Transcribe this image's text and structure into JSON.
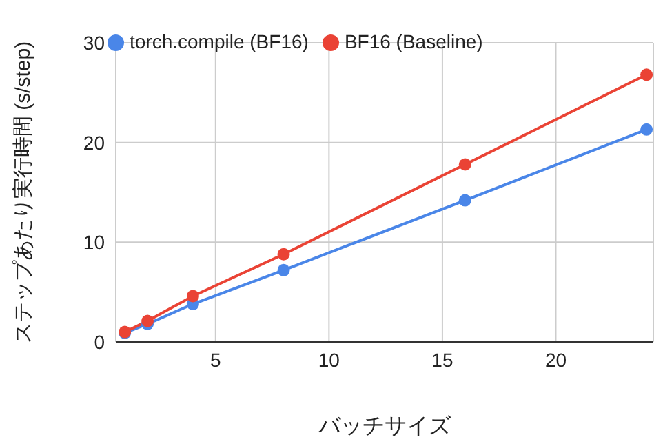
{
  "chart_data": {
    "type": "line",
    "xlabel": "バッチサイズ",
    "ylabel": "ステップあたり実行時間 (s/step)",
    "x": [
      1,
      2,
      4,
      8,
      16,
      24
    ],
    "series": [
      {
        "name": "torch.compile (BF16)",
        "color": "#4a86e8",
        "values": [
          0.9,
          1.8,
          3.8,
          7.2,
          14.2,
          21.3
        ]
      },
      {
        "name": "BF16 (Baseline)",
        "color": "#ea4335",
        "values": [
          1.0,
          2.1,
          4.6,
          8.8,
          17.8,
          26.8
        ]
      }
    ],
    "xlim": [
      0.6,
      24.3
    ],
    "xticks": [
      5,
      10,
      15,
      20
    ],
    "ylim": [
      0,
      30
    ],
    "yticks": [
      0,
      10,
      20,
      30
    ],
    "grid": true,
    "legend": "top left",
    "marker": "circle",
    "line_style": "solid"
  }
}
